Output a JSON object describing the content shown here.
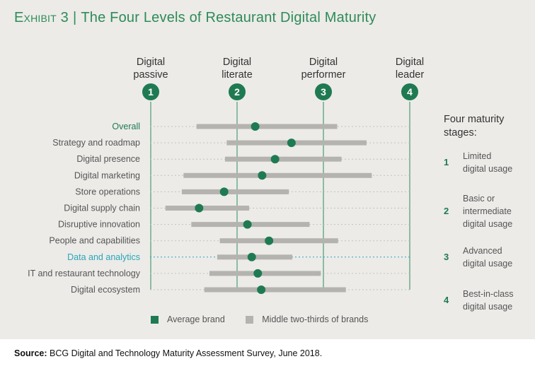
{
  "title": {
    "exhibit": "Exhibit 3",
    "separator": "|",
    "text": "The Four Levels of Restaurant Digital Maturity"
  },
  "colors": {
    "green": "#1f7a52",
    "gray_bar": "#b4b3b0",
    "teal": "#2aa6b9",
    "background": "#ecebe8"
  },
  "chart_data": {
    "type": "range-dot",
    "x_scale": "stage 1 to 4",
    "stages": [
      {
        "number": "1",
        "label_lines": [
          "Digital",
          "passive"
        ]
      },
      {
        "number": "2",
        "label_lines": [
          "Digital",
          "literate"
        ]
      },
      {
        "number": "3",
        "label_lines": [
          "Digital",
          "performer"
        ]
      },
      {
        "number": "4",
        "label_lines": [
          "Digital",
          "leader"
        ]
      }
    ],
    "categories": [
      {
        "label": "Overall",
        "highlight": "green",
        "average": 2.21,
        "range": [
          1.53,
          3.16
        ]
      },
      {
        "label": "Strategy and roadmap",
        "highlight": "",
        "average": 2.63,
        "range": [
          1.88,
          3.5
        ]
      },
      {
        "label": "Digital presence",
        "highlight": "",
        "average": 2.44,
        "range": [
          1.86,
          3.21
        ]
      },
      {
        "label": "Digital marketing",
        "highlight": "",
        "average": 2.29,
        "range": [
          1.38,
          3.56
        ]
      },
      {
        "label": "Store operations",
        "highlight": "",
        "average": 1.85,
        "range": [
          1.36,
          2.6
        ]
      },
      {
        "label": "Digital supply chain",
        "highlight": "",
        "average": 1.56,
        "range": [
          1.17,
          2.14
        ]
      },
      {
        "label": "Disruptive innovation",
        "highlight": "",
        "average": 2.12,
        "range": [
          1.47,
          2.84
        ]
      },
      {
        "label": "People and capabilities",
        "highlight": "",
        "average": 2.37,
        "range": [
          1.8,
          3.17
        ]
      },
      {
        "label": "Data and analytics",
        "highlight": "teal",
        "average": 2.17,
        "range": [
          1.77,
          2.64
        ]
      },
      {
        "label": "IT and restaurant technology",
        "highlight": "",
        "average": 2.24,
        "range": [
          1.68,
          2.97
        ]
      },
      {
        "label": "Digital ecosystem",
        "highlight": "",
        "average": 2.28,
        "range": [
          1.62,
          3.26
        ]
      }
    ]
  },
  "legend": {
    "average": "Average brand",
    "middle": "Middle two-thirds of brands"
  },
  "sidebar": {
    "title_lines": [
      "Four maturity",
      "stages:"
    ],
    "items": [
      {
        "num": "1",
        "lines": [
          "Limited",
          "digital usage"
        ]
      },
      {
        "num": "2",
        "lines": [
          "Basic or",
          "intermediate",
          "digital usage"
        ]
      },
      {
        "num": "3",
        "lines": [
          "Advanced",
          "digital usage"
        ]
      },
      {
        "num": "4",
        "lines": [
          "Best-in-class",
          "digital usage"
        ]
      }
    ]
  },
  "source": {
    "label": "Source:",
    "text": "BCG Digital and Technology Maturity Assessment Survey, June 2018."
  }
}
